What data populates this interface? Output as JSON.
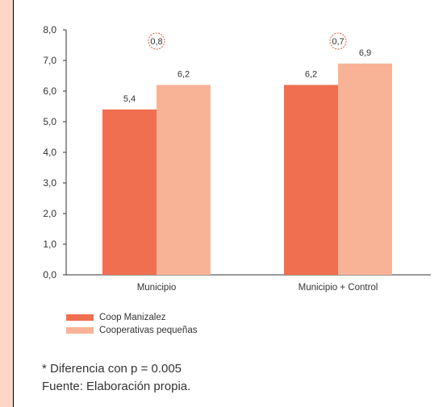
{
  "chart_data": {
    "type": "bar",
    "categories": [
      "Municipio",
      "Municipio + Control"
    ],
    "series": [
      {
        "name": "Coop Manizalez",
        "values": [
          5.4,
          6.2
        ],
        "labels": [
          "5,4",
          "6,2"
        ],
        "color": "#ef6f50"
      },
      {
        "name": "Cooperativas pequeñas",
        "values": [
          6.2,
          6.9
        ],
        "labels": [
          "6,2",
          "6,9"
        ],
        "color": "#f8b397"
      }
    ],
    "annotations": [
      "0,8",
      "0,7"
    ],
    "ylim": [
      0,
      8
    ],
    "yticks": [
      "0,0",
      "1,0",
      "2,0",
      "3,0",
      "4,0",
      "5,0",
      "6,0",
      "7,0",
      "8,0"
    ],
    "grid": false,
    "legend_position": "bottom-left"
  },
  "footnotes": {
    "note": "* Diferencia con p = 0.005",
    "source": "Fuente: Elaboración propia."
  }
}
